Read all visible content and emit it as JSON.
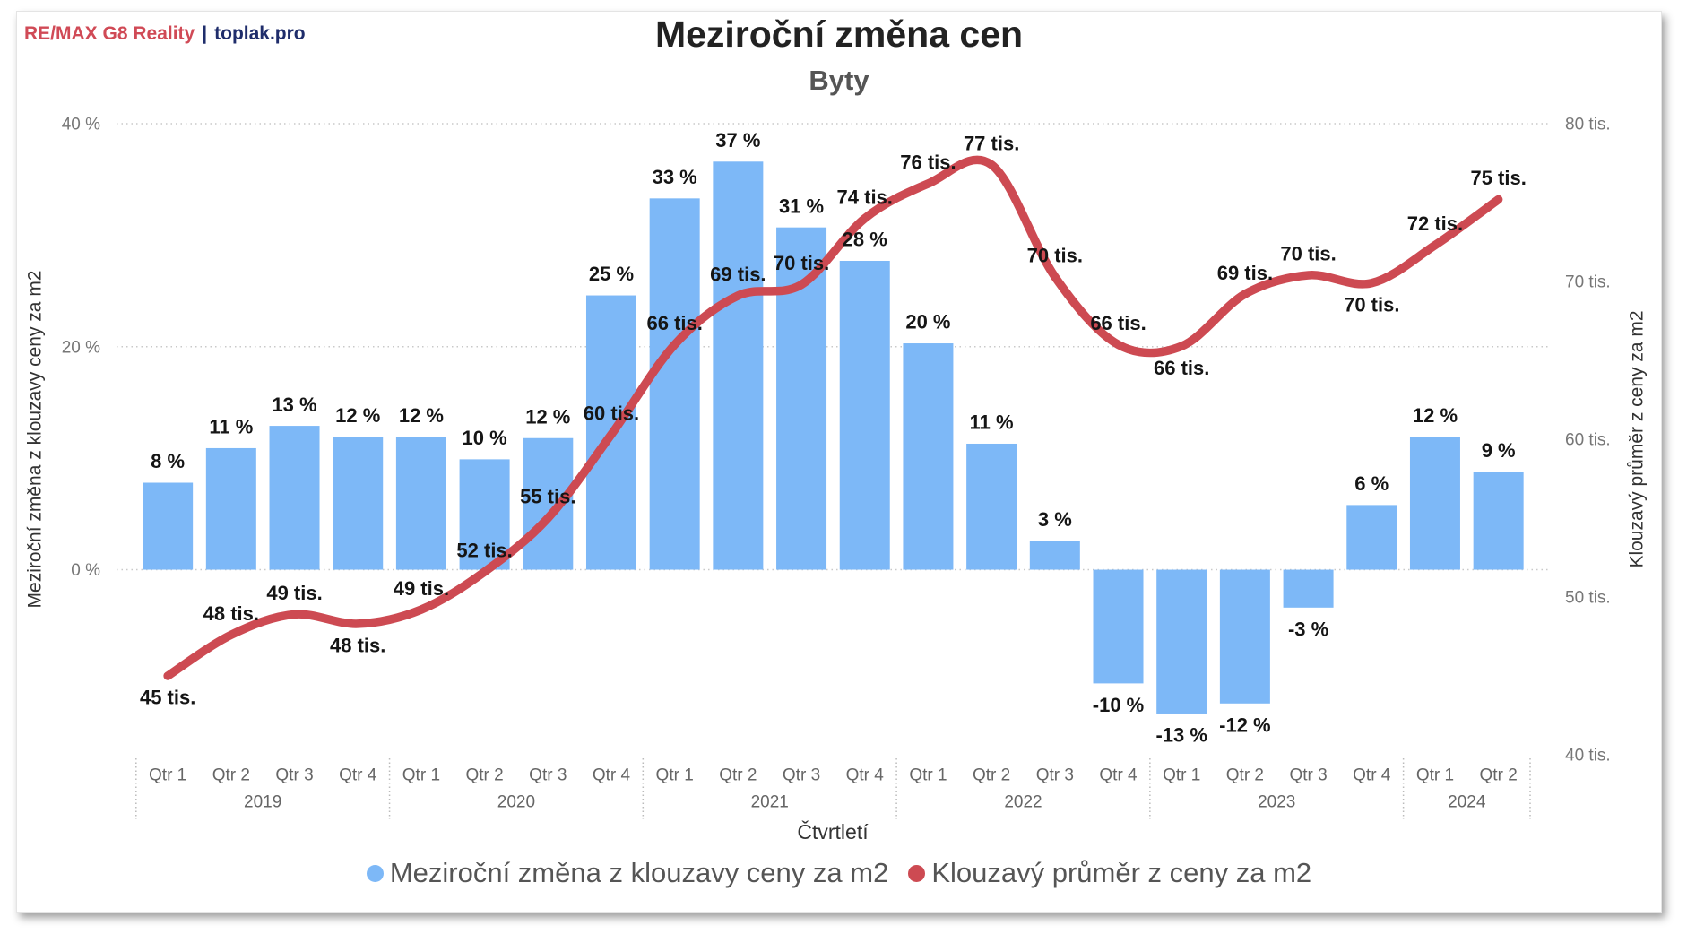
{
  "brand": {
    "name": "RE/MAX G8 Reality",
    "separator": "|",
    "site": "toplak.pro"
  },
  "chart_data": {
    "type": "bar",
    "title": "Meziroční změna cen",
    "subtitle": "Byty",
    "xlabel": "Čtvrtletí",
    "ylabel": "Meziroční změna z klouzavy ceny za m2",
    "y2label": "Klouzavý průměr z ceny za m2",
    "ylim": [
      -16.6,
      40
    ],
    "y2lim": [
      40,
      80
    ],
    "yticks": {
      "values": [
        40,
        20,
        0
      ],
      "labels": [
        "40 %",
        "20 %",
        "0 %"
      ]
    },
    "y2ticks": {
      "values": [
        80,
        70,
        60,
        50,
        40
      ],
      "labels": [
        "80 tis.",
        "70 tis.",
        "60 tis.",
        "50 tis.",
        "40 tis."
      ]
    },
    "grid": true,
    "legend": "bottom",
    "categories": [
      {
        "year": "2019",
        "quarter": "Qtr 1"
      },
      {
        "year": "2019",
        "quarter": "Qtr 2"
      },
      {
        "year": "2019",
        "quarter": "Qtr 3"
      },
      {
        "year": "2019",
        "quarter": "Qtr 4"
      },
      {
        "year": "2020",
        "quarter": "Qtr 1"
      },
      {
        "year": "2020",
        "quarter": "Qtr 2"
      },
      {
        "year": "2020",
        "quarter": "Qtr 3"
      },
      {
        "year": "2020",
        "quarter": "Qtr 4"
      },
      {
        "year": "2021",
        "quarter": "Qtr 1"
      },
      {
        "year": "2021",
        "quarter": "Qtr 2"
      },
      {
        "year": "2021",
        "quarter": "Qtr 3"
      },
      {
        "year": "2021",
        "quarter": "Qtr 4"
      },
      {
        "year": "2022",
        "quarter": "Qtr 1"
      },
      {
        "year": "2022",
        "quarter": "Qtr 2"
      },
      {
        "year": "2022",
        "quarter": "Qtr 3"
      },
      {
        "year": "2022",
        "quarter": "Qtr 4"
      },
      {
        "year": "2023",
        "quarter": "Qtr 1"
      },
      {
        "year": "2023",
        "quarter": "Qtr 2"
      },
      {
        "year": "2023",
        "quarter": "Qtr 3"
      },
      {
        "year": "2023",
        "quarter": "Qtr 4"
      },
      {
        "year": "2024",
        "quarter": "Qtr 1"
      },
      {
        "year": "2024",
        "quarter": "Qtr 2"
      }
    ],
    "series": [
      {
        "name": "Meziroční změna z klouzavy ceny za m2",
        "type": "bar",
        "axis": "left",
        "unit": "%",
        "color": "#7DB8F7",
        "values": [
          7.8,
          10.9,
          12.9,
          11.9,
          11.9,
          9.9,
          11.8,
          24.6,
          33.3,
          36.6,
          30.7,
          27.7,
          20.3,
          11.3,
          2.6,
          -10.2,
          -12.9,
          -12.0,
          -3.4,
          5.8,
          11.9,
          8.8
        ]
      },
      {
        "name": "Klouzavý průměr z ceny za m2",
        "type": "line",
        "axis": "right",
        "unit": "tis.",
        "color": "#CD4A52",
        "values": [
          45.0,
          47.6,
          48.9,
          48.3,
          49.2,
          51.6,
          55.0,
          60.3,
          66.0,
          69.1,
          69.8,
          74.0,
          76.2,
          77.4,
          70.3,
          66.0,
          65.9,
          69.2,
          70.4,
          69.9,
          72.3,
          75.2
        ]
      }
    ]
  }
}
